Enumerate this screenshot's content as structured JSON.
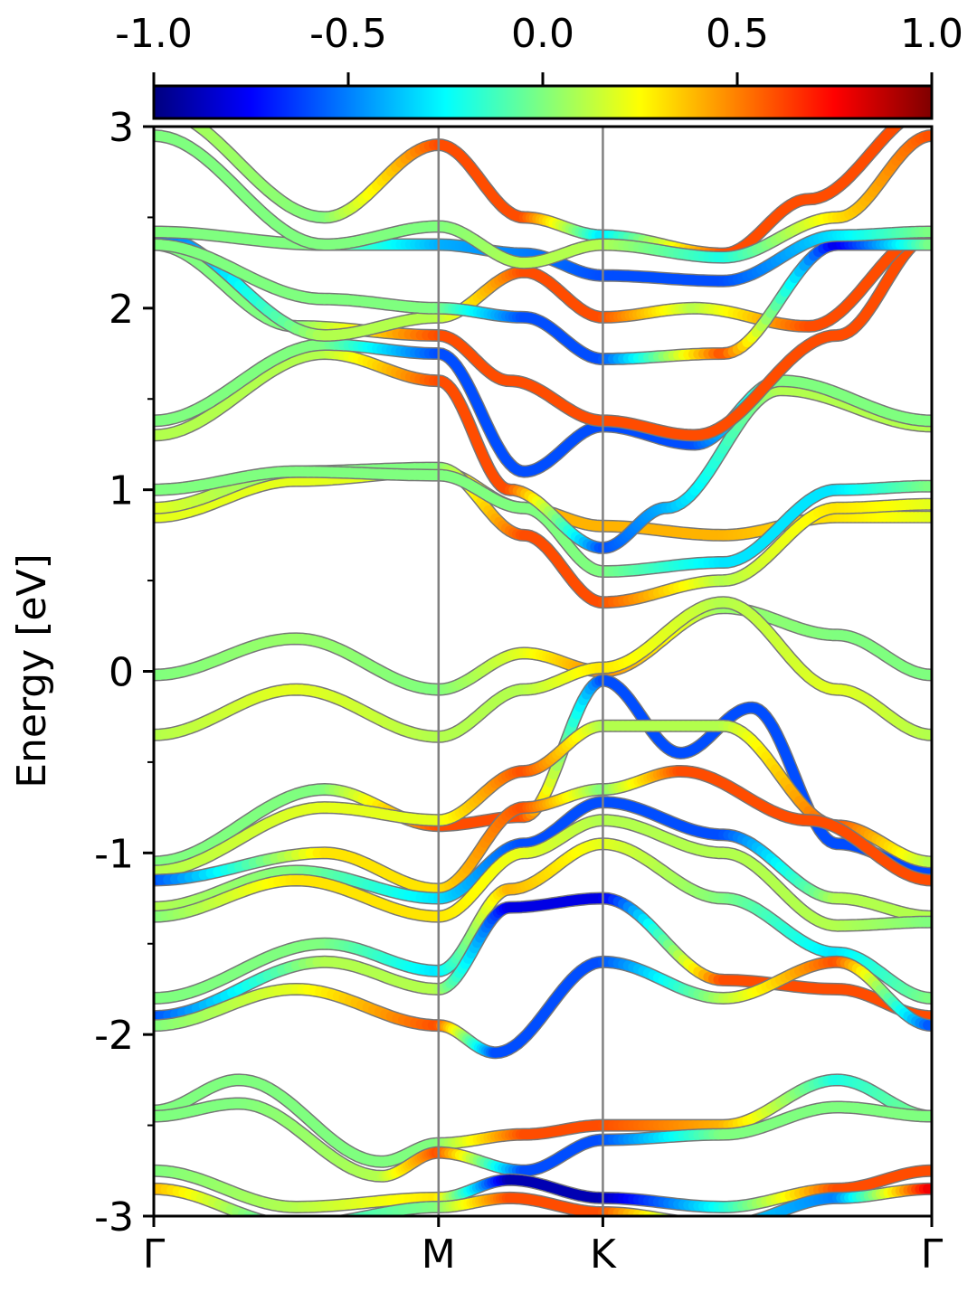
{
  "chart_data": {
    "type": "line",
    "title": "",
    "xlabel": "",
    "ylabel": "Energy [eV]",
    "ylim": [
      -3,
      3
    ],
    "y_ticks": [
      "3",
      "2",
      "1",
      "0",
      "-1",
      "-2",
      "-3"
    ],
    "x_ticks": [
      "Γ",
      "M",
      "K",
      "Γ"
    ],
    "high_symmetry_positions": [
      0,
      1,
      1.577,
      2.732
    ],
    "colorbar": {
      "colormap": "jet",
      "range": [
        -1.0,
        1.0
      ],
      "tick_labels": [
        "-1.0",
        "-0.5",
        "0.0",
        "0.5",
        "1.0"
      ]
    },
    "grid": false,
    "series": [
      {
        "x": [
          0,
          0.5,
          1,
          1.3,
          1.577,
          2.0,
          2.4,
          2.732
        ],
        "y": [
          -0.02,
          0.18,
          -0.1,
          0.1,
          0.0,
          0.35,
          0.2,
          -0.02
        ],
        "c": [
          0.0,
          0.05,
          0.0,
          0.2,
          0.5,
          0.05,
          0.0,
          0.0
        ]
      },
      {
        "x": [
          0,
          0.5,
          1,
          1.3,
          1.577,
          2.0,
          2.4,
          2.732
        ],
        "y": [
          -0.35,
          -0.1,
          -0.36,
          -0.1,
          0.02,
          0.38,
          -0.1,
          -0.35
        ],
        "c": [
          0.1,
          0.2,
          0.1,
          0.1,
          0.3,
          0.1,
          0.2,
          0.1
        ]
      },
      {
        "x": [
          0,
          0.6,
          1,
          1.3,
          1.577,
          1.85,
          2.1,
          2.4,
          2.732
        ],
        "y": [
          -1.05,
          -0.65,
          -0.85,
          -0.8,
          -0.05,
          -0.45,
          -0.2,
          -0.95,
          -1.1
        ],
        "c": [
          0.0,
          0.0,
          0.6,
          0.6,
          -0.6,
          -0.6,
          -0.6,
          -0.6,
          -0.6
        ]
      },
      {
        "x": [
          0,
          0.6,
          1,
          1.3,
          1.577,
          2.0,
          2.4,
          2.732
        ],
        "y": [
          -1.1,
          -0.75,
          -0.82,
          -0.55,
          -0.3,
          -0.3,
          -0.85,
          -1.05
        ],
        "c": [
          0.1,
          0.2,
          0.2,
          0.6,
          0.1,
          0.1,
          0.6,
          0.1
        ]
      },
      {
        "x": [
          0,
          0.6,
          1,
          1.3,
          1.577,
          1.85,
          2.3,
          2.732
        ],
        "y": [
          -1.15,
          -1.0,
          -1.2,
          -0.75,
          -0.65,
          -0.55,
          -0.82,
          -1.15
        ],
        "c": [
          -0.6,
          0.3,
          0.3,
          0.6,
          0.0,
          0.6,
          0.6,
          0.6
        ]
      },
      {
        "x": [
          0,
          0.5,
          1,
          1.3,
          1.577,
          2.0,
          2.4,
          2.732
        ],
        "y": [
          -1.3,
          -1.1,
          -1.25,
          -0.95,
          -0.72,
          -0.9,
          -1.25,
          -1.35
        ],
        "c": [
          0.1,
          0.0,
          -0.3,
          -0.6,
          -0.6,
          -0.6,
          0.1,
          0.1
        ]
      },
      {
        "x": [
          0,
          0.5,
          1,
          1.3,
          1.577,
          2.0,
          2.4,
          2.732
        ],
        "y": [
          -1.35,
          -1.15,
          -1.35,
          -1.0,
          -0.82,
          -1.0,
          -1.4,
          -1.38
        ],
        "c": [
          0.0,
          0.3,
          0.3,
          0.2,
          0.1,
          0.1,
          0.1,
          0.0
        ]
      },
      {
        "x": [
          0,
          0.6,
          1,
          1.25,
          1.577,
          2.0,
          2.4,
          2.732
        ],
        "y": [
          -1.8,
          -1.5,
          -1.65,
          -1.2,
          -0.95,
          -1.25,
          -1.55,
          -1.8
        ],
        "c": [
          0.0,
          0.0,
          -0.3,
          0.4,
          0.2,
          0.0,
          -0.3,
          0.0
        ]
      },
      {
        "x": [
          0,
          0.6,
          1,
          1.25,
          1.577,
          2.0,
          2.4,
          2.732
        ],
        "y": [
          -1.9,
          -1.6,
          -1.75,
          -1.3,
          -1.25,
          -1.7,
          -1.75,
          -1.9
        ],
        "c": [
          -0.6,
          0.1,
          0.1,
          -0.8,
          -0.8,
          0.6,
          0.6,
          0.6
        ]
      },
      {
        "x": [
          0,
          0.5,
          1,
          1.2,
          1.577,
          2.0,
          2.4,
          2.732
        ],
        "y": [
          -1.95,
          -1.75,
          -1.95,
          -2.1,
          -1.6,
          -1.8,
          -1.6,
          -1.95
        ],
        "c": [
          0.0,
          0.2,
          0.6,
          -0.6,
          -0.6,
          0.1,
          0.6,
          -0.6
        ]
      },
      {
        "x": [
          0,
          0.3,
          0.8,
          1,
          1.3,
          1.577,
          2.0,
          2.4,
          2.732
        ],
        "y": [
          -2.42,
          -2.25,
          -2.7,
          -2.6,
          -2.55,
          -2.5,
          -2.5,
          -2.25,
          -2.45
        ],
        "c": [
          0.0,
          0.0,
          0.0,
          0.0,
          0.6,
          0.6,
          0.4,
          -0.2,
          0.0
        ]
      },
      {
        "x": [
          0,
          0.3,
          0.8,
          1,
          1.3,
          1.577,
          2.0,
          2.4,
          2.732
        ],
        "y": [
          -2.45,
          -2.38,
          -2.78,
          -2.65,
          -2.75,
          -2.58,
          -2.55,
          -2.4,
          -2.45
        ],
        "c": [
          0.0,
          0.0,
          0.1,
          0.6,
          -0.6,
          -0.6,
          0.0,
          0.0,
          0.0
        ]
      },
      {
        "x": [
          0,
          0.5,
          1,
          1.25,
          1.577,
          2.0,
          2.4,
          2.732
        ],
        "y": [
          -2.75,
          -2.95,
          -2.9,
          -2.8,
          -2.9,
          -2.95,
          -2.85,
          -2.75
        ],
        "c": [
          0.0,
          0.1,
          0.3,
          -0.9,
          -0.9,
          -0.2,
          0.6,
          0.6
        ]
      },
      {
        "x": [
          0,
          0.5,
          1,
          1.25,
          1.577,
          2.0,
          2.4,
          2.732
        ],
        "y": [
          -2.85,
          -3.05,
          -2.95,
          -2.9,
          -2.98,
          -3.05,
          -2.9,
          -2.85
        ],
        "c": [
          0.4,
          -0.2,
          0.0,
          0.6,
          0.6,
          -0.3,
          -0.5,
          0.8
        ]
      },
      {
        "x": [
          0,
          0.5,
          1,
          1.3,
          1.577,
          2.0,
          2.4,
          2.732
        ],
        "y": [
          0.85,
          1.05,
          1.1,
          0.9,
          0.8,
          0.75,
          0.85,
          0.85
        ],
        "c": [
          0.2,
          0.2,
          0.2,
          0.4,
          0.4,
          0.4,
          0.3,
          0.2
        ]
      },
      {
        "x": [
          0,
          0.5,
          1,
          1.3,
          1.577,
          2.0,
          2.4,
          2.732
        ],
        "y": [
          0.9,
          1.1,
          1.12,
          0.75,
          0.38,
          0.5,
          0.9,
          0.92
        ],
        "c": [
          0.2,
          0.0,
          0.0,
          0.6,
          0.6,
          0.1,
          0.3,
          0.2
        ]
      },
      {
        "x": [
          0,
          0.5,
          1,
          1.3,
          1.577,
          2.0,
          2.4,
          2.732
        ],
        "y": [
          1.0,
          1.1,
          1.08,
          0.9,
          0.55,
          0.6,
          1.0,
          1.02
        ],
        "c": [
          0.0,
          0.0,
          0.0,
          0.0,
          0.0,
          -0.3,
          -0.3,
          0.0
        ]
      },
      {
        "x": [
          0,
          0.6,
          1,
          1.25,
          1.577,
          1.8,
          2.2,
          2.732
        ],
        "y": [
          1.3,
          1.75,
          1.6,
          1.0,
          0.68,
          0.9,
          1.55,
          1.35
        ],
        "c": [
          0.1,
          0.1,
          0.6,
          0.6,
          -0.6,
          -0.4,
          0.1,
          0.1
        ]
      },
      {
        "x": [
          0,
          0.6,
          1,
          1.3,
          1.577,
          1.9,
          2.2,
          2.732
        ],
        "y": [
          1.38,
          1.8,
          1.75,
          1.1,
          1.35,
          1.25,
          1.6,
          1.38
        ],
        "c": [
          0.0,
          0.0,
          -0.6,
          -0.6,
          -0.6,
          -0.6,
          0.0,
          0.0
        ]
      },
      {
        "x": [
          0,
          0.5,
          1,
          1.25,
          1.577,
          1.9,
          2.4,
          2.732
        ],
        "y": [
          2.35,
          1.9,
          1.85,
          1.6,
          1.38,
          1.3,
          1.85,
          2.4
        ],
        "c": [
          0.0,
          0.0,
          0.6,
          0.6,
          0.6,
          0.6,
          0.6,
          0.6
        ]
      },
      {
        "x": [
          0,
          0.6,
          1,
          1.3,
          1.577,
          1.9,
          2.3,
          2.732
        ],
        "y": [
          2.4,
          1.85,
          1.95,
          2.2,
          1.95,
          2.0,
          1.9,
          2.42
        ],
        "c": [
          -0.6,
          0.1,
          0.1,
          0.6,
          0.6,
          0.1,
          0.6,
          0.6
        ]
      },
      {
        "x": [
          0,
          0.6,
          1,
          1.3,
          1.577,
          2.0,
          2.4,
          2.732
        ],
        "y": [
          2.35,
          2.05,
          2.0,
          1.95,
          1.72,
          1.75,
          2.35,
          2.35
        ],
        "c": [
          0.0,
          0.0,
          0.0,
          -0.6,
          -0.6,
          0.6,
          -0.8,
          0.0
        ]
      },
      {
        "x": [
          0,
          0.6,
          1,
          1.3,
          1.577,
          2.0,
          2.4,
          2.732
        ],
        "y": [
          2.42,
          2.35,
          2.35,
          2.3,
          2.18,
          2.15,
          2.4,
          2.42
        ],
        "c": [
          0.0,
          0.0,
          -0.4,
          -0.5,
          -0.6,
          -0.6,
          -0.3,
          0.0
        ]
      },
      {
        "x": [
          0,
          0.6,
          1,
          1.3,
          1.577,
          2.0,
          2.3,
          2.732
        ],
        "y": [
          3.1,
          2.5,
          2.9,
          2.5,
          2.4,
          2.3,
          2.6,
          3.1
        ],
        "c": [
          0.1,
          0.0,
          0.6,
          0.6,
          -0.3,
          0.6,
          0.6,
          0.6
        ]
      },
      {
        "x": [
          0,
          0.6,
          1,
          1.3,
          1.577,
          2.0,
          2.4,
          2.732
        ],
        "y": [
          2.95,
          2.35,
          2.45,
          2.25,
          2.35,
          2.28,
          2.5,
          2.95
        ],
        "c": [
          0.0,
          0.0,
          0.0,
          0.1,
          0.1,
          -0.2,
          0.3,
          0.6
        ]
      }
    ]
  }
}
